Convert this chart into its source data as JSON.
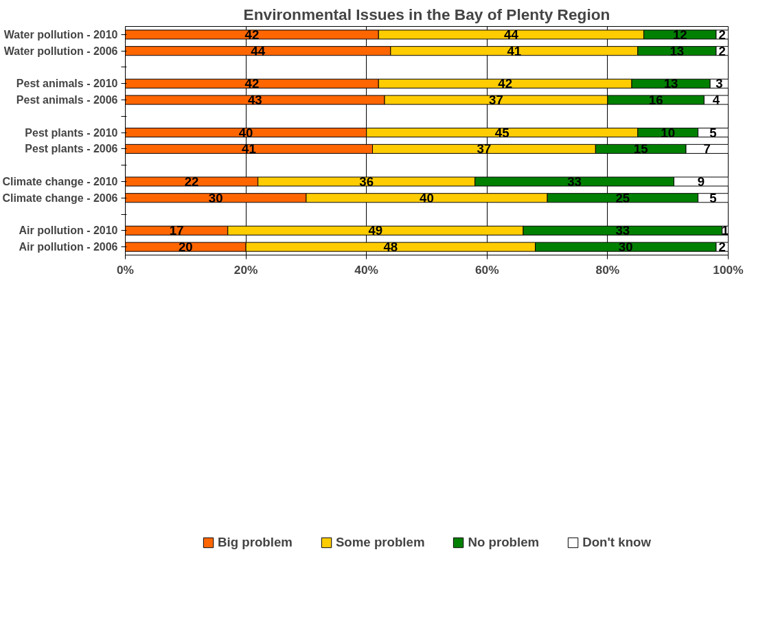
{
  "chart_data": {
    "type": "bar",
    "orientation": "horizontal",
    "stacked": true,
    "title": "Environmental Issues in the Bay of Plenty Region",
    "categories": [
      "Water pollution - 2010",
      "Water pollution - 2006",
      null,
      "Pest animals - 2010",
      "Pest animals - 2006",
      null,
      "Pest plants - 2010",
      "Pest plants - 2006",
      null,
      "Climate change - 2010",
      "Climate change - 2006",
      null,
      "Air pollution - 2010",
      "Air pollution - 2006"
    ],
    "series": [
      {
        "name": "Big problem",
        "color": "#ff6600",
        "values": [
          42,
          44,
          null,
          42,
          43,
          null,
          40,
          41,
          null,
          22,
          30,
          null,
          17,
          20
        ]
      },
      {
        "name": "Some problem",
        "color": "#ffcc00",
        "values": [
          44,
          41,
          null,
          42,
          37,
          null,
          45,
          37,
          null,
          36,
          40,
          null,
          49,
          48
        ]
      },
      {
        "name": "No problem",
        "color": "#008000",
        "values": [
          12,
          13,
          null,
          13,
          16,
          null,
          10,
          15,
          null,
          33,
          25,
          null,
          33,
          30
        ]
      },
      {
        "name": "Don't know",
        "color": "#ffffff",
        "values": [
          2,
          2,
          null,
          3,
          4,
          null,
          5,
          7,
          null,
          9,
          5,
          null,
          1,
          2
        ]
      }
    ],
    "xlim": [
      0,
      100
    ],
    "xticks": [
      {
        "value": 0,
        "label": "0%"
      },
      {
        "value": 20,
        "label": "20%"
      },
      {
        "value": 40,
        "label": "40%"
      },
      {
        "value": 60,
        "label": "60%"
      },
      {
        "value": 80,
        "label": "80%"
      },
      {
        "value": 100,
        "label": "100%"
      }
    ],
    "grid": "x",
    "legend": "bottom",
    "data_labels": true
  }
}
